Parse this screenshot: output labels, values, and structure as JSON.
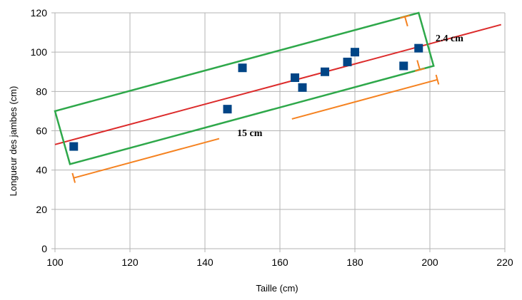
{
  "chart_data": {
    "type": "scatter",
    "xlabel": "Taille (cm)",
    "ylabel": "Longueur des jambes (cm)",
    "xlim": [
      100,
      220
    ],
    "ylim": [
      0,
      120
    ],
    "x_ticks": [
      100,
      120,
      140,
      160,
      180,
      200,
      220
    ],
    "y_ticks": [
      0,
      20,
      40,
      60,
      80,
      100,
      120
    ],
    "grid": true,
    "points": [
      {
        "x": 105,
        "y": 52
      },
      {
        "x": 146,
        "y": 71
      },
      {
        "x": 150,
        "y": 92
      },
      {
        "x": 164,
        "y": 87
      },
      {
        "x": 166,
        "y": 82
      },
      {
        "x": 172,
        "y": 90
      },
      {
        "x": 178,
        "y": 95
      },
      {
        "x": 180,
        "y": 100
      },
      {
        "x": 193,
        "y": 93
      },
      {
        "x": 197,
        "y": 102
      }
    ],
    "point_color": "#004586",
    "fit_line": {
      "x0": 100,
      "y0": 53,
      "x1": 219,
      "y1": 114,
      "color": "#dc2b2b"
    },
    "bounding_box": {
      "corners": [
        [
          100,
          70
        ],
        [
          197,
          120
        ],
        [
          201,
          93
        ],
        [
          104,
          43
        ]
      ],
      "color": "#2ea84a"
    },
    "annotations": {
      "width_label": "15 cm",
      "height_label": "2.4 cm",
      "color": "#f58220"
    }
  }
}
